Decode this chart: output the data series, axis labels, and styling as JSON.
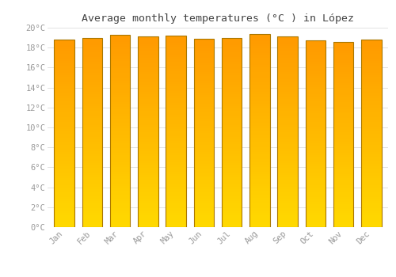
{
  "title": "Average monthly temperatures (°C ) in López",
  "months": [
    "Jan",
    "Feb",
    "Mar",
    "Apr",
    "May",
    "Jun",
    "Jul",
    "Aug",
    "Sep",
    "Oct",
    "Nov",
    "Dec"
  ],
  "values": [
    18.8,
    19.0,
    19.3,
    19.1,
    19.2,
    18.9,
    19.0,
    19.4,
    19.1,
    18.7,
    18.6,
    18.8
  ],
  "ylim": [
    0,
    20
  ],
  "yticks": [
    0,
    2,
    4,
    6,
    8,
    10,
    12,
    14,
    16,
    18,
    20
  ],
  "bar_color_bottom": "#FFCC00",
  "bar_color_top": "#FF9900",
  "bar_edge_color": "#CC8800",
  "background_color": "#FFFFFF",
  "grid_color": "#DDDDDD",
  "title_fontsize": 9.5,
  "tick_fontsize": 7.5,
  "font_color": "#999999"
}
